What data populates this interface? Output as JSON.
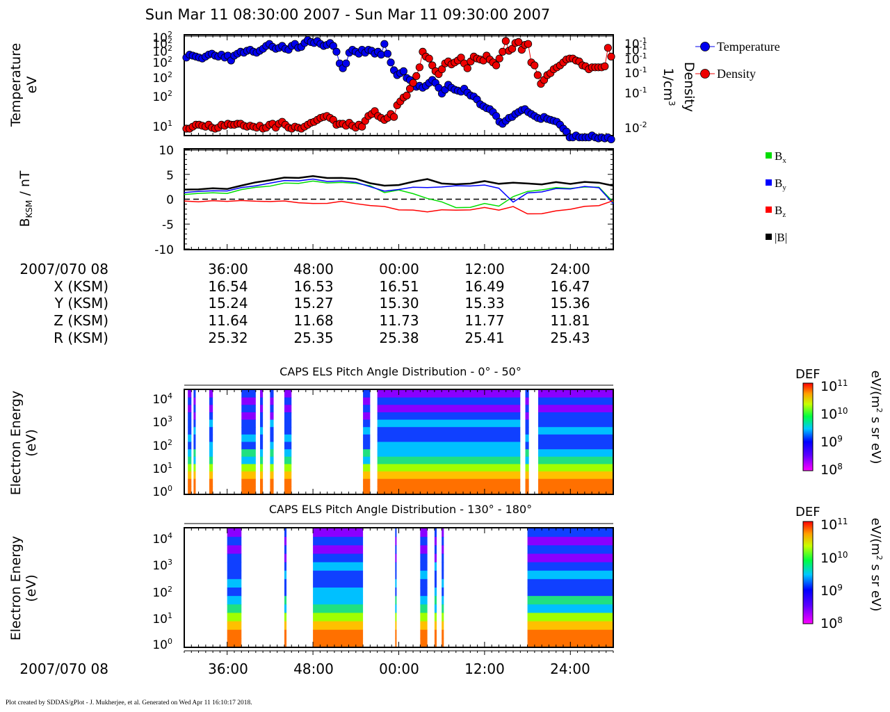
{
  "title": "Sun Mar 11 08:30:00 2007 - Sun Mar 11 09:30:00 2007",
  "footer": "Plot created by SDDAS/gPlot - J. Mukherjee, et al.  Generated on Wed Apr 11 16:10:17 2018.",
  "colors": {
    "temperature": "#0000ee",
    "density": "#ee0000",
    "bx": "#00dd00",
    "by": "#0000ff",
    "bz": "#ff0000",
    "btot": "#000000"
  },
  "time_axis": {
    "start_label": "2007/070 08",
    "ticks": [
      "36:00",
      "48:00",
      "00:00",
      "12:00",
      "24:00"
    ],
    "start_min": 30,
    "end_min": 90
  },
  "ephemeris": {
    "rows": [
      {
        "label": "X (KSM)",
        "values": [
          "16.54",
          "16.53",
          "16.51",
          "16.49",
          "16.47"
        ]
      },
      {
        "label": "Y (KSM)",
        "values": [
          "15.24",
          "15.27",
          "15.30",
          "15.33",
          "15.36"
        ]
      },
      {
        "label": "Z (KSM)",
        "values": [
          "11.64",
          "11.68",
          "11.73",
          "11.77",
          "11.81"
        ]
      },
      {
        "label": "R (KSM)",
        "values": [
          "25.32",
          "25.35",
          "25.38",
          "25.41",
          "25.43"
        ]
      }
    ]
  },
  "chart_data": [
    {
      "type": "scatter",
      "panel": "moments",
      "ylabel": "Temperature",
      "ylabel_unit": "eV",
      "y2label": "Density",
      "y2label_unit": "1/cm",
      "y2label_sup": "3",
      "yticks": [
        {
          "b": "10",
          "e": "2"
        },
        {
          "b": "10",
          "e": "2"
        },
        {
          "b": "10",
          "e": "2"
        },
        {
          "b": "10",
          "e": "2"
        },
        {
          "b": "10",
          "e": "2"
        },
        {
          "b": "10",
          "e": "2"
        },
        {
          "b": "10",
          "e": "1"
        }
      ],
      "y2ticks": [
        {
          "b": "10",
          "e": "-1"
        },
        {
          "b": "10",
          "e": "-1"
        },
        {
          "b": "10",
          "e": "-1"
        },
        {
          "b": "10",
          "e": "-1"
        },
        {
          "b": "10",
          "e": "-1"
        },
        {
          "b": "10",
          "e": "-2"
        }
      ],
      "legend": [
        {
          "name": "Temperature",
          "key": "temperature"
        },
        {
          "name": "Density",
          "key": "density"
        }
      ],
      "temperature_norm": [
        0.78,
        0.81,
        0.8,
        0.79,
        0.78,
        0.77,
        0.79,
        0.81,
        0.82,
        0.8,
        0.79,
        0.81,
        0.78,
        0.8,
        0.75,
        0.8,
        0.82,
        0.84,
        0.83,
        0.85,
        0.86,
        0.84,
        0.83,
        0.85,
        0.87,
        0.9,
        0.92,
        0.89,
        0.87,
        0.88,
        0.9,
        0.87,
        0.86,
        0.9,
        0.92,
        0.88,
        0.89,
        0.93,
        0.96,
        0.94,
        0.93,
        0.95,
        0.92,
        0.9,
        0.91,
        0.93,
        0.9,
        0.84,
        0.72,
        0.67,
        0.72,
        0.83,
        0.86,
        0.84,
        0.82,
        0.86,
        0.83,
        0.86,
        0.85,
        0.82,
        0.84,
        0.81,
        0.92,
        0.82,
        0.73,
        0.65,
        0.6,
        0.62,
        0.64,
        0.57,
        0.55,
        0.5,
        0.48,
        0.49,
        0.47,
        0.49,
        0.52,
        0.55,
        0.52,
        0.47,
        0.41,
        0.45,
        0.5,
        0.47,
        0.45,
        0.44,
        0.43,
        0.46,
        0.42,
        0.39,
        0.38,
        0.35,
        0.3,
        0.28,
        0.26,
        0.25,
        0.22,
        0.18,
        0.12,
        0.1,
        0.13,
        0.16,
        0.17,
        0.2,
        0.22,
        0.24,
        0.25,
        0.22,
        0.2,
        0.18,
        0.16,
        0.15,
        0.17,
        0.15,
        0.14,
        0.13,
        0.12,
        0.09,
        0.05,
        0.02,
        -0.04,
        -0.04,
        -0.02,
        -0.04,
        -0.04,
        -0.04,
        -0.04,
        -0.02,
        -0.04,
        -0.05,
        -0.04,
        -0.05,
        -0.04,
        -0.06
      ],
      "density_norm": [
        0.05,
        0.05,
        0.07,
        0.09,
        0.09,
        0.08,
        0.07,
        0.09,
        0.06,
        0.05,
        0.06,
        0.09,
        0.08,
        0.1,
        0.09,
        0.09,
        0.1,
        0.1,
        0.08,
        0.07,
        0.08,
        0.07,
        0.06,
        0.08,
        0.05,
        0.06,
        0.09,
        0.1,
        0.06,
        0.1,
        0.12,
        0.09,
        0.06,
        0.05,
        0.07,
        0.06,
        0.05,
        0.07,
        0.09,
        0.11,
        0.12,
        0.14,
        0.16,
        0.17,
        0.18,
        0.16,
        0.14,
        0.09,
        0.1,
        0.1,
        0.08,
        0.11,
        0.08,
        0.06,
        0.09,
        0.07,
        0.13,
        0.18,
        0.2,
        0.23,
        0.18,
        0.16,
        0.14,
        0.16,
        0.2,
        0.17,
        0.29,
        0.33,
        0.37,
        0.39,
        0.46,
        0.52,
        0.59,
        0.68,
        0.84,
        0.79,
        0.77,
        0.7,
        0.64,
        0.61,
        0.66,
        0.72,
        0.74,
        0.71,
        0.73,
        0.75,
        0.78,
        0.72,
        0.67,
        0.74,
        0.79,
        0.77,
        0.76,
        0.75,
        0.8,
        0.76,
        0.73,
        0.7,
        0.77,
        0.84,
        0.95,
        0.85,
        0.87,
        0.93,
        0.94,
        0.86,
        0.91,
        0.92,
        0.73,
        0.7,
        0.6,
        0.51,
        0.55,
        0.6,
        0.62,
        0.66,
        0.68,
        0.7,
        0.73,
        0.76,
        0.77,
        0.77,
        0.75,
        0.74,
        0.7,
        0.69,
        0.66,
        0.68,
        0.68,
        0.68,
        0.68,
        0.69,
        0.88,
        0.79
      ]
    },
    {
      "type": "line",
      "panel": "magnetic_field",
      "ylabel": "B",
      "ylabel_sub": "KSM",
      "ylabel_unit": " / nT",
      "ylim": [
        -10,
        10
      ],
      "yticks": [
        "10",
        "5",
        "0",
        "-5",
        "-10"
      ],
      "legend": [
        {
          "name": "B",
          "sub": "x",
          "key": "bx"
        },
        {
          "name": "B",
          "sub": "y",
          "key": "by"
        },
        {
          "name": "B",
          "sub": "z",
          "key": "bz"
        },
        {
          "name": "|B|",
          "sub": "",
          "key": "btot"
        }
      ],
      "x_minutes": [
        30,
        32,
        34,
        36,
        38,
        40,
        42,
        44,
        46,
        48,
        50,
        52,
        54,
        56,
        58,
        60,
        62,
        64,
        66,
        68,
        70,
        72,
        74,
        76,
        78,
        80,
        82,
        84,
        86,
        88,
        90
      ],
      "series": [
        {
          "name": "Bx",
          "key": "bx",
          "values": [
            1,
            1.2,
            1.2,
            1.3,
            1.8,
            2.5,
            2.6,
            3.2,
            3.3,
            3.5,
            3.4,
            3.3,
            3.2,
            2.8,
            1.2,
            2,
            1,
            0.2,
            -0.5,
            -1.8,
            -1.5,
            -1,
            -1.3,
            0.5,
            1.5,
            2,
            2.2,
            2.3,
            2.4,
            2.4,
            -0.5
          ]
        },
        {
          "name": "By",
          "key": "by",
          "values": [
            1.4,
            1.6,
            1.6,
            1.8,
            2.2,
            2.8,
            3.2,
            3.7,
            3.8,
            3.9,
            3.7,
            3.6,
            3.4,
            2.6,
            1.5,
            2.1,
            2.3,
            2.4,
            2.5,
            2.6,
            2.8,
            2.7,
            2.3,
            -0.6,
            1.2,
            1.6,
            2,
            2.2,
            2.5,
            2.3,
            -0.8
          ]
        },
        {
          "name": "Bz",
          "key": "bz",
          "values": [
            -0.3,
            -0.5,
            -0.4,
            -0.3,
            -0.4,
            -0.3,
            -0.5,
            -0.4,
            -0.6,
            -1,
            -0.7,
            -0.5,
            -0.9,
            -1.2,
            -1.6,
            -2,
            -2.3,
            -2.5,
            -2.1,
            -2.3,
            -2,
            -1.8,
            -2.1,
            -1.5,
            -3,
            -2.8,
            -2.5,
            -1.9,
            -1.5,
            -1.3,
            -0.2
          ]
        },
        {
          "name": "|B|",
          "key": "btot",
          "values": [
            2,
            2,
            2.1,
            2.2,
            2.6,
            3.5,
            3.8,
            4.3,
            4.4,
            4.5,
            4.4,
            4.2,
            4.1,
            3.3,
            2.6,
            3,
            3.4,
            4.1,
            3.2,
            2.9,
            3.3,
            3.5,
            3.2,
            3.3,
            3.1,
            3.1,
            3.3,
            3.2,
            3.4,
            3.3,
            2.8
          ]
        }
      ]
    },
    {
      "type": "heatmap",
      "panel": "els_0_50",
      "title": "CAPS ELS Pitch Angle Distribution - 0° - 50°",
      "ylabel": "Electron Energy",
      "ylabel_unit": "(eV)",
      "yticks": [
        {
          "b": "10",
          "e": "4"
        },
        {
          "b": "10",
          "e": "3"
        },
        {
          "b": "10",
          "e": "2"
        },
        {
          "b": "10",
          "e": "1"
        },
        {
          "b": "10",
          "e": "0"
        }
      ],
      "colorbar": {
        "label": "DEF",
        "unit": "eV/(m",
        "unit_sup": "2",
        "unit_tail": " s sr eV)",
        "ticks": [
          {
            "b": "10",
            "e": "11"
          },
          {
            "b": "10",
            "e": "10"
          },
          {
            "b": "10",
            "e": "9"
          },
          {
            "b": "10",
            "e": "8"
          }
        ]
      },
      "data_intervals_min": [
        [
          30.5,
          31
        ],
        [
          31.3,
          31.6
        ],
        [
          33.5,
          34
        ],
        [
          38,
          40
        ],
        [
          40.6,
          41
        ],
        [
          42,
          42.5
        ],
        [
          44,
          45
        ],
        [
          55,
          56
        ],
        [
          57,
          77
        ],
        [
          77.7,
          78.2
        ],
        [
          79.5,
          90
        ]
      ],
      "intensity_levels": [
        0.4,
        0.55,
        0.75,
        0.9
      ]
    },
    {
      "type": "heatmap",
      "panel": "els_130_180",
      "title": "CAPS ELS Pitch Angle Distribution - 130° - 180°",
      "ylabel": "Electron Energy",
      "ylabel_unit": "(eV)",
      "yticks": [
        {
          "b": "10",
          "e": "4"
        },
        {
          "b": "10",
          "e": "3"
        },
        {
          "b": "10",
          "e": "2"
        },
        {
          "b": "10",
          "e": "1"
        },
        {
          "b": "10",
          "e": "0"
        }
      ],
      "colorbar": {
        "label": "DEF",
        "unit": "eV/(m",
        "unit_sup": "2",
        "unit_tail": " s sr eV)",
        "ticks": [
          {
            "b": "10",
            "e": "11"
          },
          {
            "b": "10",
            "e": "10"
          },
          {
            "b": "10",
            "e": "9"
          },
          {
            "b": "10",
            "e": "8"
          }
        ]
      },
      "data_intervals_min": [
        [
          36,
          38
        ],
        [
          44,
          44.3
        ],
        [
          48,
          55
        ],
        [
          59.5,
          59.7
        ],
        [
          63,
          64
        ],
        [
          65,
          65.3
        ],
        [
          66,
          66.3
        ],
        [
          78,
          90
        ]
      ],
      "intensity_levels": [
        0.4,
        0.55,
        0.75,
        0.9
      ]
    }
  ]
}
